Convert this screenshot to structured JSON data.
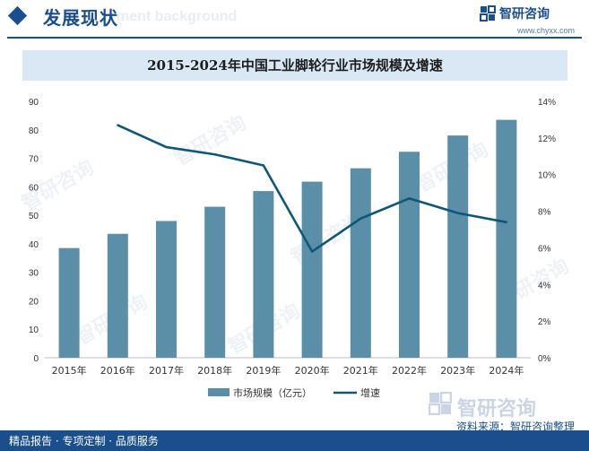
{
  "header": {
    "section_title": "发展现状",
    "section_ghost": "ment background",
    "brand_name": "智研咨询",
    "brand_url": "www.chyxx.com"
  },
  "chart_title": "2015-2024年中国工业脚轮行业市场规模及增速",
  "chart_data": {
    "type": "bar+line",
    "title": "2015-2024年中国工业脚轮行业市场规模及增速",
    "categories": [
      "2015年",
      "2016年",
      "2017年",
      "2018年",
      "2019年",
      "2020年",
      "2021年",
      "2022年",
      "2023年",
      "2024年"
    ],
    "series": [
      {
        "name": "市场规模（亿元）",
        "type": "bar",
        "axis": "left",
        "color": "#5b8fa8",
        "values": [
          38.5,
          43.5,
          48,
          53,
          58.5,
          61.8,
          66.5,
          72.3,
          78,
          83.5
        ]
      },
      {
        "name": "增速",
        "type": "line",
        "axis": "right",
        "color": "#0f5778",
        "values": [
          null,
          12.7,
          11.5,
          11.1,
          10.5,
          5.8,
          7.6,
          8.7,
          7.9,
          7.4
        ]
      }
    ],
    "y_left": {
      "min": 0,
      "max": 90,
      "step": 10,
      "ticks": [
        "0",
        "10",
        "20",
        "30",
        "40",
        "50",
        "60",
        "70",
        "80",
        "90"
      ]
    },
    "y_right": {
      "min": 0,
      "max": 14,
      "step": 2,
      "ticks": [
        "0%",
        "2%",
        "4%",
        "6%",
        "8%",
        "10%",
        "12%",
        "14%"
      ]
    },
    "legend": [
      "市场规模（亿元）",
      "增速"
    ],
    "legend_position": "bottom-center",
    "grid": false
  },
  "watermark_text": "智研咨询",
  "source_logo_text": "智研咨询",
  "source": "资料来源：智研咨询整理",
  "footer": "精品报告 · 专项定制 · 品质服务"
}
